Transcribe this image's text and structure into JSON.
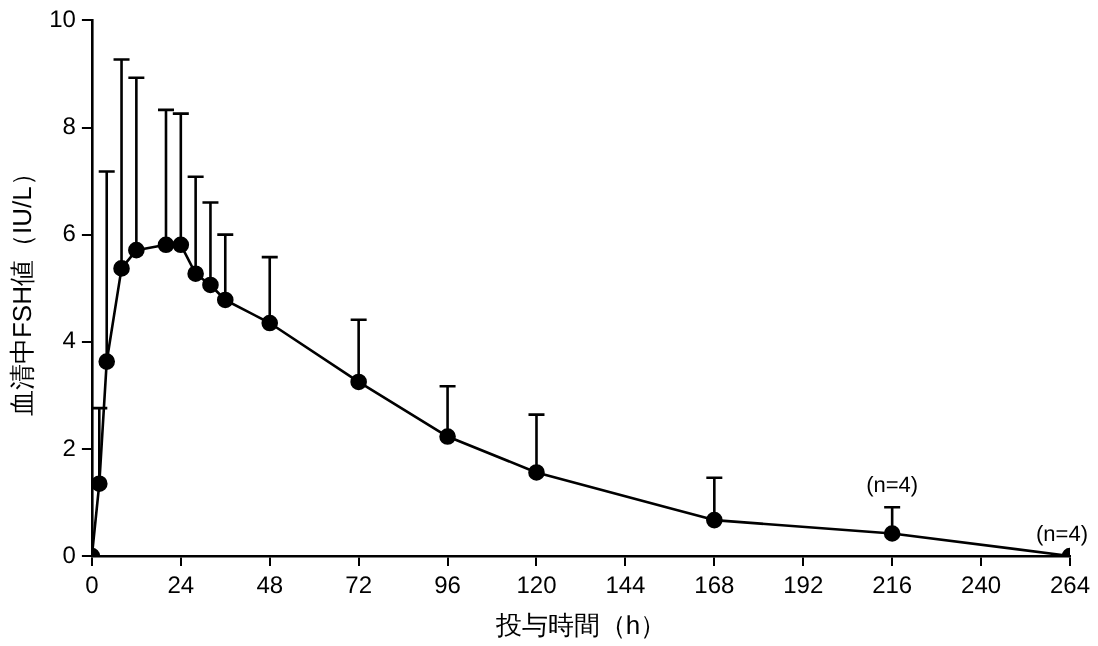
{
  "chart_data": {
    "type": "line",
    "xlabel": "投与時間（h）",
    "ylabel": "血清中FSH値（IU/L）",
    "x": [
      0,
      2,
      4,
      8,
      12,
      20,
      24,
      28,
      32,
      36,
      48,
      72,
      96,
      120,
      168,
      216,
      264
    ],
    "series": [
      {
        "color": "#000000",
        "values": [
          0,
          1.35,
          3.63,
          5.37,
          5.71,
          5.81,
          5.81,
          5.27,
          5.06,
          4.78,
          4.35,
          3.25,
          2.23,
          1.56,
          0.67,
          0.42,
          0
        ],
        "errors": [
          null,
          [
            1.35,
            2.76
          ],
          [
            3.63,
            7.18
          ],
          [
            5.37,
            9.27
          ],
          [
            5.71,
            8.93
          ],
          [
            5.81,
            8.33
          ],
          [
            5.81,
            8.26
          ],
          [
            5.27,
            7.08
          ],
          [
            5.06,
            6.6
          ],
          [
            4.78,
            6.0
          ],
          [
            4.35,
            5.58
          ],
          [
            3.25,
            4.41
          ],
          [
            2.23,
            3.17
          ],
          [
            1.56,
            2.64
          ],
          [
            0.67,
            1.46
          ],
          [
            0.42,
            0.91
          ],
          null
        ]
      }
    ],
    "xlim": [
      0,
      264
    ],
    "xticks": [
      0,
      24,
      48,
      72,
      96,
      120,
      144,
      168,
      192,
      216,
      240,
      264
    ],
    "ylim": [
      0,
      10
    ],
    "yticks": [
      0,
      2,
      4,
      6,
      8,
      10
    ],
    "grid": false,
    "legend": false,
    "marker": "circle",
    "line_style": "solid",
    "annotations": [
      {
        "text": "(n=4)",
        "x": 216,
        "y": 0.42
      },
      {
        "text": "(n=4)",
        "x": 264,
        "y": 0
      }
    ]
  }
}
